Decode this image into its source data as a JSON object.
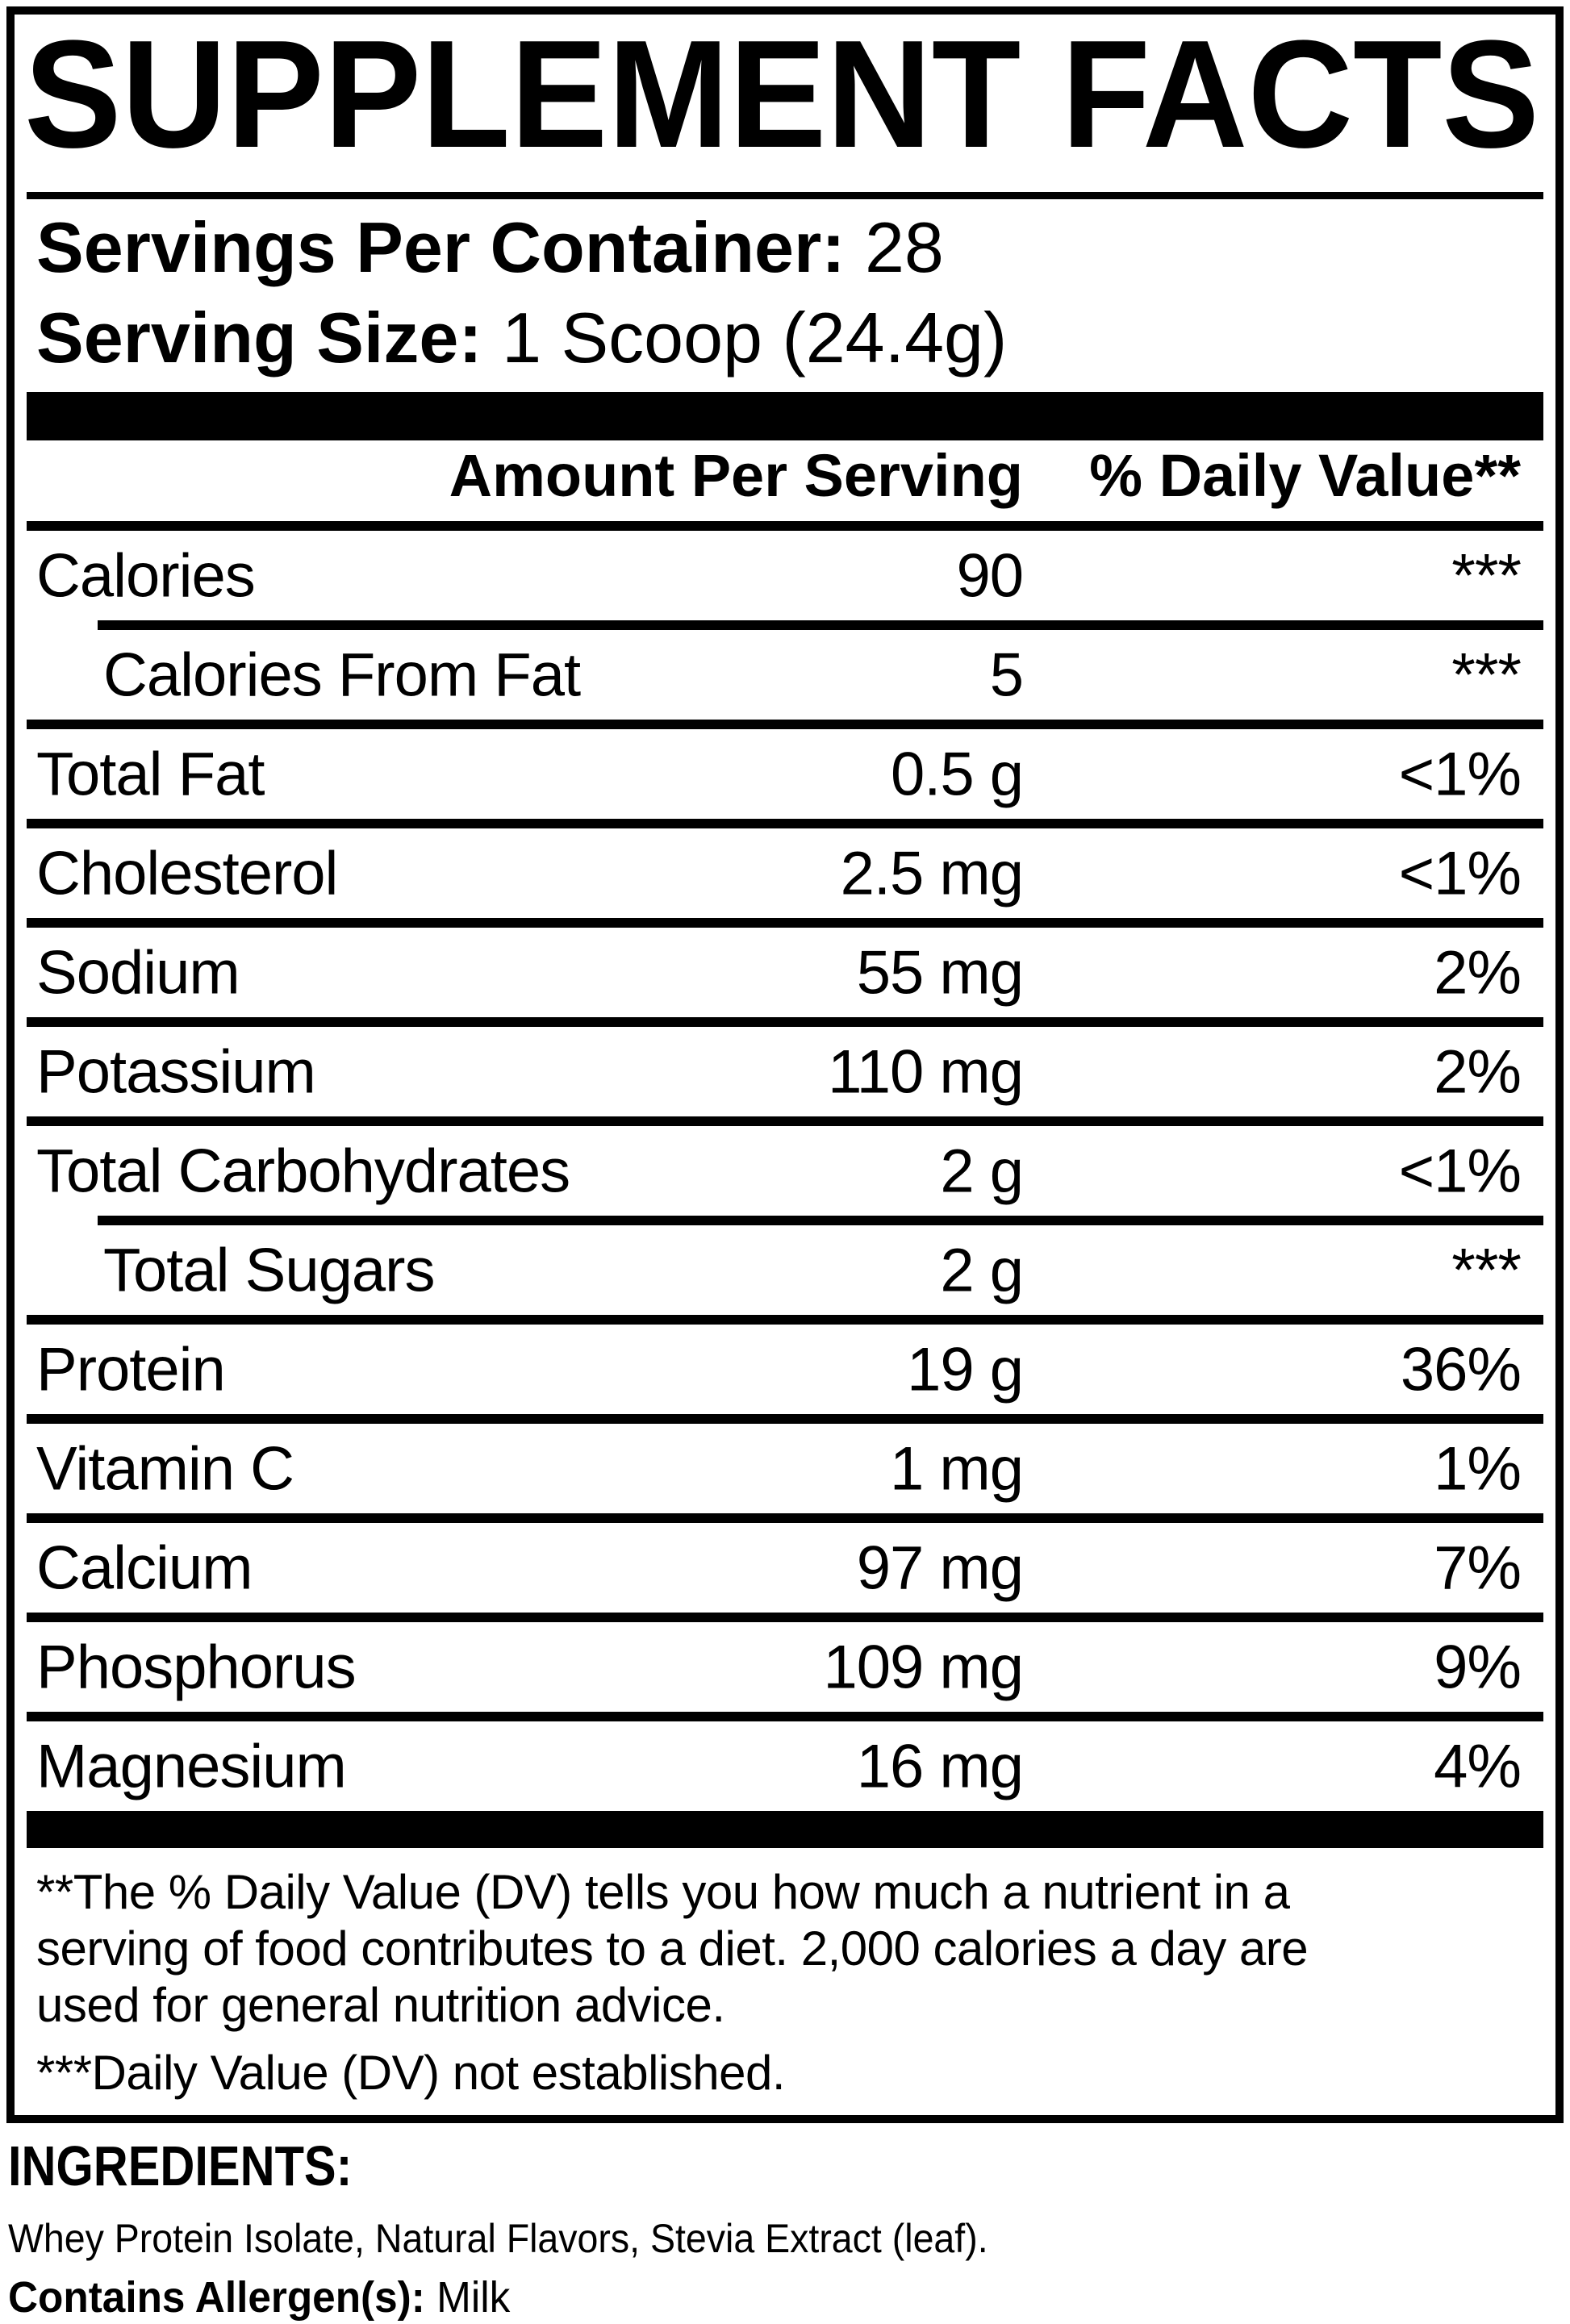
{
  "label": {
    "title": "SUPPLEMENT FACTS",
    "servings_per_container": {
      "label": "Servings Per Container:",
      "value": "28"
    },
    "serving_size": {
      "label": "Serving Size:",
      "value": "1 Scoop (24.4g)"
    },
    "table": {
      "headers": {
        "amount": "Amount Per Serving",
        "daily_value": "% Daily Value**"
      },
      "rows": [
        {
          "name": "Calories",
          "amount": "90",
          "dv": "***",
          "indent": false,
          "sep": "indented"
        },
        {
          "name": "Calories From Fat",
          "amount": "5",
          "dv": "***",
          "indent": true,
          "sep": "full"
        },
        {
          "name": "Total Fat",
          "amount": "0.5 g",
          "dv": "<1%",
          "indent": false,
          "sep": "full"
        },
        {
          "name": "Cholesterol",
          "amount": "2.5 mg",
          "dv": "<1%",
          "indent": false,
          "sep": "full"
        },
        {
          "name": "Sodium",
          "amount": "55 mg",
          "dv": "2%",
          "indent": false,
          "sep": "full"
        },
        {
          "name": "Potassium",
          "amount": "110 mg",
          "dv": "2%",
          "indent": false,
          "sep": "full"
        },
        {
          "name": "Total Carbohydrates",
          "amount": "2 g",
          "dv": "<1%",
          "indent": false,
          "sep": "indented"
        },
        {
          "name": "Total Sugars",
          "amount": "2 g",
          "dv": "***",
          "indent": true,
          "sep": "full"
        },
        {
          "name": "Protein",
          "amount": "19 g",
          "dv": "36%",
          "indent": false,
          "sep": "full"
        },
        {
          "name": "Vitamin C",
          "amount": "1 mg",
          "dv": "1%",
          "indent": false,
          "sep": "full"
        },
        {
          "name": "Calcium",
          "amount": "97 mg",
          "dv": "7%",
          "indent": false,
          "sep": "full"
        },
        {
          "name": "Phosphorus",
          "amount": "109 mg",
          "dv": "9%",
          "indent": false,
          "sep": "full"
        },
        {
          "name": "Magnesium",
          "amount": "16 mg",
          "dv": "4%",
          "indent": false,
          "sep": "none"
        }
      ]
    },
    "footnotes": {
      "daily_value_note": "**The % Daily Value (DV) tells you how much a nutrient in a\nserving of food contributes to a diet. 2,000 calories a day are\nused for general nutrition advice.",
      "not_established_note": "***Daily Value (DV) not established."
    },
    "ingredients": {
      "heading": "INGREDIENTS:",
      "list": "Whey Protein Isolate, Natural Flavors, Stevia Extract (leaf).",
      "allergen_label": "Contains Allergen(s):",
      "allergen_value": "Milk"
    },
    "colors": {
      "ink": "#000000",
      "paper": "#ffffff"
    }
  }
}
